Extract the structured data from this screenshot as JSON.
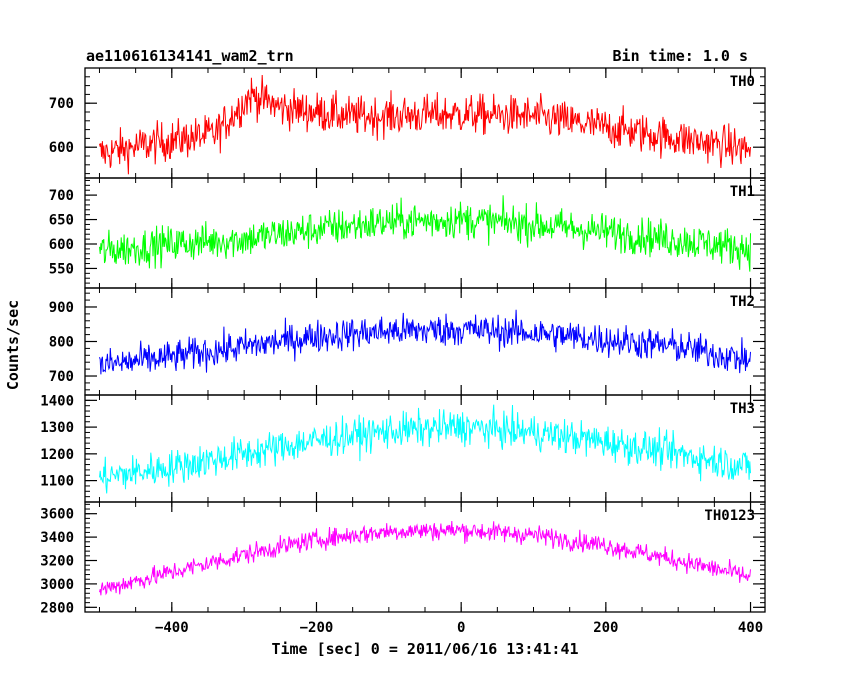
{
  "header": {
    "title": "ae110616134141_wam2_trn",
    "bin_time": "Bin time: 1.0 s"
  },
  "chart_data": {
    "type": "line",
    "xlabel": "Time [sec] 0 = 2011/06/16 13:41:41",
    "ylabel": "Counts/sec",
    "xlim": [
      -520,
      420
    ],
    "x_ticks": [
      -400,
      -200,
      0,
      200,
      400
    ],
    "x_tick_labels": [
      "−400",
      "−200",
      "0",
      "200",
      "400"
    ],
    "x_range": [
      -500,
      400
    ],
    "bin": 1.0,
    "panels": [
      {
        "name": "TH0",
        "color": "#ff0000",
        "ylim": [
          530,
          780
        ],
        "y_ticks": [
          600,
          700
        ],
        "y_tick_labels": [
          "600",
          "700"
        ],
        "trend": [
          [
            -500,
            585
          ],
          [
            -420,
            610
          ],
          [
            -340,
            630
          ],
          [
            -290,
            720
          ],
          [
            -250,
            690
          ],
          [
            -150,
            670
          ],
          [
            0,
            675
          ],
          [
            100,
            670
          ],
          [
            200,
            645
          ],
          [
            300,
            620
          ],
          [
            400,
            595
          ]
        ],
        "noise": 38
      },
      {
        "name": "TH1",
        "color": "#00ff00",
        "ylim": [
          510,
          735
        ],
        "y_ticks": [
          550,
          600,
          650,
          700
        ],
        "y_tick_labels": [
          "550",
          "600",
          "650",
          "700"
        ],
        "trend": [
          [
            -500,
            585
          ],
          [
            -400,
            600
          ],
          [
            -300,
            610
          ],
          [
            -200,
            630
          ],
          [
            -100,
            645
          ],
          [
            0,
            650
          ],
          [
            100,
            640
          ],
          [
            200,
            625
          ],
          [
            300,
            608
          ],
          [
            400,
            590
          ]
        ],
        "noise": 32
      },
      {
        "name": "TH2",
        "color": "#0000ff",
        "ylim": [
          645,
          955
        ],
        "y_ticks": [
          700,
          800,
          900
        ],
        "y_tick_labels": [
          "700",
          "800",
          "900"
        ],
        "trend": [
          [
            -500,
            730
          ],
          [
            -400,
            755
          ],
          [
            -300,
            785
          ],
          [
            -200,
            815
          ],
          [
            -100,
            830
          ],
          [
            0,
            835
          ],
          [
            100,
            825
          ],
          [
            200,
            805
          ],
          [
            300,
            785
          ],
          [
            400,
            745
          ]
        ],
        "noise": 40
      },
      {
        "name": "TH3",
        "color": "#00ffff",
        "ylim": [
          1020,
          1420
        ],
        "y_ticks": [
          1100,
          1200,
          1300,
          1400
        ],
        "y_tick_labels": [
          "1100",
          "1200",
          "1300",
          "1400"
        ],
        "trend": [
          [
            -500,
            1110
          ],
          [
            -400,
            1150
          ],
          [
            -300,
            1200
          ],
          [
            -200,
            1250
          ],
          [
            -100,
            1285
          ],
          [
            0,
            1300
          ],
          [
            100,
            1280
          ],
          [
            200,
            1245
          ],
          [
            300,
            1200
          ],
          [
            400,
            1150
          ]
        ],
        "noise": 55
      },
      {
        "name": "TH0123",
        "color": "#ff00ff",
        "ylim": [
          2760,
          3700
        ],
        "y_ticks": [
          2800,
          3000,
          3200,
          3400,
          3600
        ],
        "y_tick_labels": [
          "2800",
          "3000",
          "3200",
          "3400",
          "3600"
        ],
        "trend": [
          [
            -500,
            2950
          ],
          [
            -400,
            3100
          ],
          [
            -300,
            3250
          ],
          [
            -200,
            3380
          ],
          [
            -100,
            3450
          ],
          [
            0,
            3460
          ],
          [
            100,
            3420
          ],
          [
            200,
            3330
          ],
          [
            300,
            3200
          ],
          [
            400,
            3060
          ]
        ],
        "noise": 70
      }
    ]
  }
}
